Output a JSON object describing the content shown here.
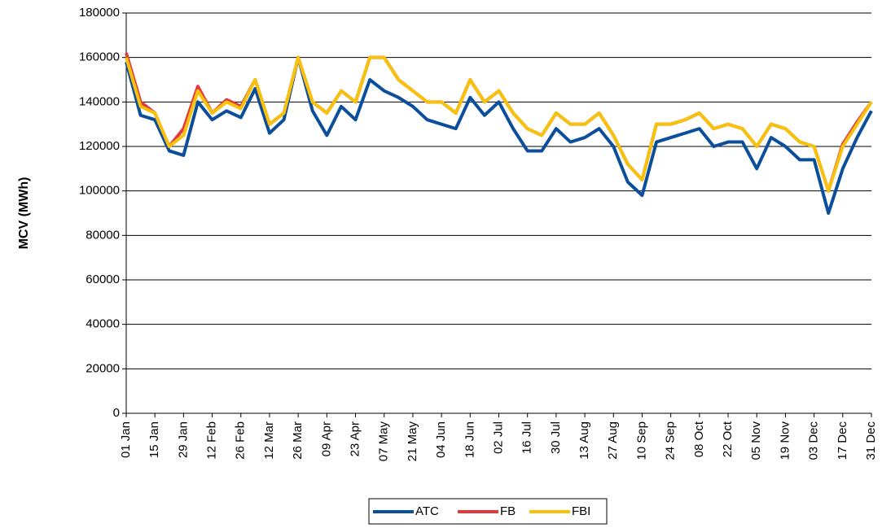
{
  "chart_data": {
    "type": "line",
    "y_label": "MCV (MWh)",
    "categories": [
      "01 Jan",
      null,
      "15 Jan",
      null,
      "29 Jan",
      null,
      "12 Feb",
      null,
      "26 Feb",
      null,
      "12 Mar",
      null,
      "26 Mar",
      null,
      "09 Apr",
      null,
      "23 Apr",
      null,
      "07 May",
      null,
      "21 May",
      null,
      "04 Jun",
      null,
      "18 Jun",
      null,
      "02 Jul",
      null,
      "16 Jul",
      null,
      "30 Jul",
      null,
      "13 Aug",
      null,
      "27 Aug",
      null,
      "10 Sep",
      null,
      "24 Sep",
      null,
      "08 Oct",
      null,
      "22 Oct",
      null,
      "05 Nov",
      null,
      "19 Nov",
      null,
      "03 Dec",
      null,
      "17 Dec",
      null,
      "31 Dec"
    ],
    "series": [
      {
        "name": "ATC",
        "color": "#0b4f9c",
        "values": [
          158000,
          134000,
          132000,
          118000,
          116000,
          140000,
          132000,
          136000,
          133000,
          146000,
          126000,
          132000,
          160000,
          136000,
          125000,
          138000,
          132000,
          150000,
          145000,
          142000,
          138000,
          132000,
          130000,
          128000,
          142000,
          134000,
          140000,
          128000,
          118000,
          118000,
          128000,
          122000,
          124000,
          128000,
          120000,
          104000,
          98000,
          122000,
          124000,
          126000,
          128000,
          120000,
          122000,
          122000,
          110000,
          124000,
          120000,
          114000,
          114000,
          90000,
          110000,
          124000,
          136000
        ]
      },
      {
        "name": "FB",
        "color": "#e0393e",
        "values": [
          162000,
          140000,
          135000,
          120000,
          128000,
          147000,
          135000,
          141000,
          138000,
          150000,
          130000,
          135000,
          160000,
          140000,
          135000,
          145000,
          140000,
          160000,
          160000,
          150000,
          145000,
          140000,
          140000,
          135000,
          150000,
          140000,
          145000,
          135000,
          128000,
          125000,
          135000,
          130000,
          130000,
          135000,
          125000,
          112000,
          105000,
          130000,
          130000,
          132000,
          135000,
          128000,
          130000,
          128000,
          120000,
          130000,
          128000,
          122000,
          120000,
          100000,
          121000,
          131000,
          140000
        ]
      },
      {
        "name": "FBI",
        "color": "#f7c10c",
        "values": [
          160000,
          138000,
          135000,
          120000,
          125000,
          145000,
          135000,
          140000,
          137000,
          150000,
          130000,
          135000,
          160000,
          140000,
          135000,
          145000,
          140000,
          160000,
          160000,
          150000,
          145000,
          140000,
          140000,
          135000,
          150000,
          140000,
          145000,
          135000,
          128000,
          125000,
          135000,
          130000,
          130000,
          135000,
          125000,
          112000,
          105000,
          130000,
          130000,
          132000,
          135000,
          128000,
          130000,
          128000,
          120000,
          130000,
          128000,
          122000,
          120000,
          100000,
          120000,
          130000,
          140000
        ]
      }
    ],
    "ylim": [
      0,
      180000
    ],
    "yticks": [
      0,
      20000,
      40000,
      60000,
      80000,
      100000,
      120000,
      140000,
      160000,
      180000
    ],
    "grid": true
  }
}
